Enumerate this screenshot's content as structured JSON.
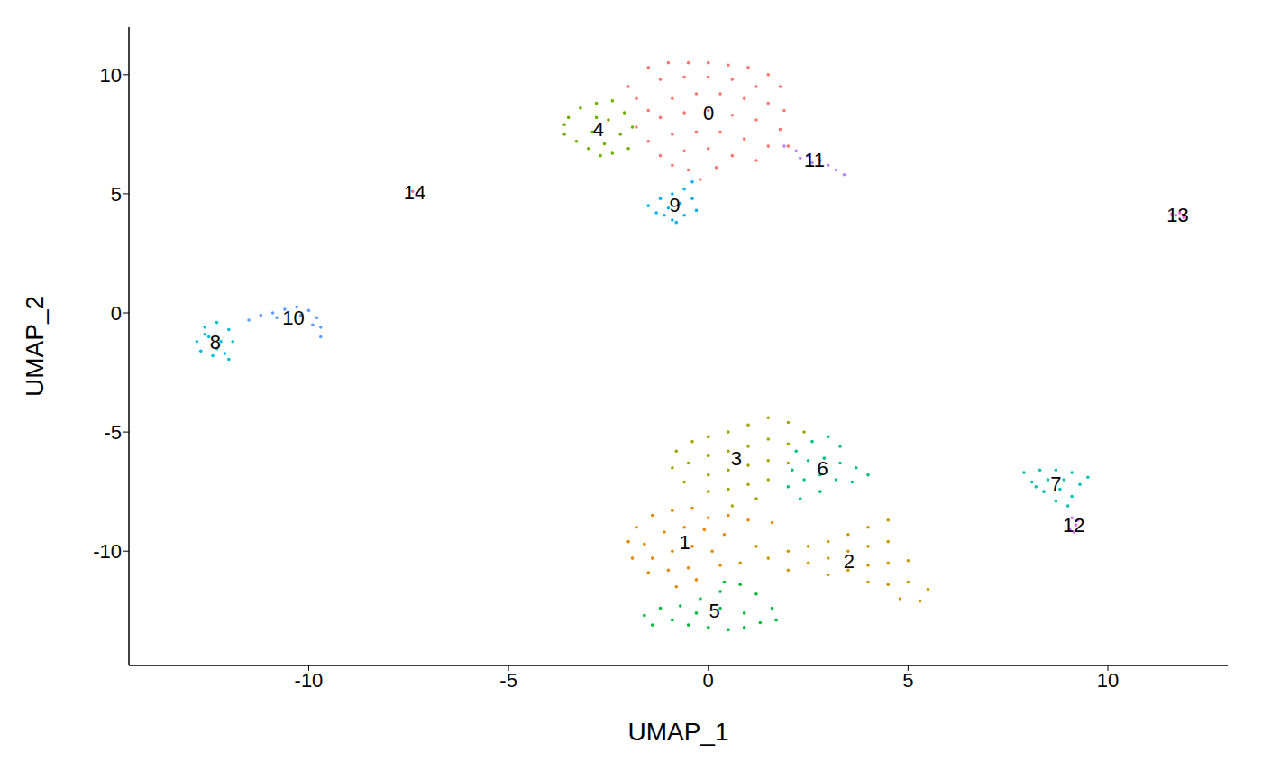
{
  "chart_data": {
    "type": "scatter",
    "x_label": "UMAP_1",
    "y_label": "UMAP_2",
    "xlim": [
      -14.5,
      13
    ],
    "ylim": [
      -14.8,
      12
    ],
    "xticks": [
      -10,
      -5,
      0,
      5,
      10
    ],
    "yticks": [
      -10,
      -5,
      0,
      5,
      10
    ],
    "grid": false,
    "marker": "circle",
    "series": [
      {
        "name": "0",
        "color": "#F8766D",
        "x": [
          -2,
          -1.5,
          -1,
          -0.5,
          0,
          0.5,
          1,
          1.5,
          1.8,
          -1.8,
          -1.2,
          -0.6,
          0,
          0.6,
          1.2,
          -1.5,
          -0.9,
          -0.3,
          0.3,
          0.9,
          1.5,
          1.9,
          -1.8,
          -1.2,
          -0.6,
          0,
          0.6,
          1.2,
          1.8,
          -1.5,
          -0.9,
          -0.3,
          0.3,
          0.9,
          1.5,
          2,
          -1.2,
          -0.6,
          0,
          0.6,
          1.2,
          -0.5,
          0.2,
          -0.9,
          -0.2
        ],
        "values": [
          9.5,
          10.3,
          10.5,
          10.5,
          10.5,
          10.4,
          10.3,
          10,
          9.5,
          9,
          9.8,
          9.9,
          9.9,
          9.8,
          9.5,
          8.5,
          9,
          9.2,
          9.2,
          9,
          8.8,
          8.5,
          7.8,
          8.2,
          8.4,
          8.5,
          8.3,
          8.1,
          7.7,
          7.2,
          7.5,
          7.6,
          7.6,
          7.3,
          7,
          7,
          6.6,
          6.8,
          6.9,
          6.6,
          6.4,
          6,
          6.1,
          6.2,
          5.6
        ]
      },
      {
        "name": "1",
        "color": "#E58700",
        "x": [
          -2,
          -1.8,
          -1.4,
          -0.9,
          -0.4,
          0,
          0.5,
          1,
          1.6,
          -1.6,
          -1.1,
          -0.6,
          -0.1,
          0.4,
          -1.9,
          -1.4,
          -0.9,
          -0.4,
          0.1,
          -1.5,
          -1,
          -0.5,
          -0.8,
          -0.3,
          0.3
        ],
        "values": [
          -9.6,
          -9,
          -8.5,
          -8.3,
          -8.2,
          -8.6,
          -8.5,
          -8.7,
          -8.8,
          -9.7,
          -9.2,
          -9,
          -9.1,
          -9.3,
          -10.3,
          -10.3,
          -10,
          -9.8,
          -10,
          -10.9,
          -10.8,
          -10.7,
          -11.5,
          -11.2,
          -10.6
        ]
      },
      {
        "name": "2",
        "color": "#C99800",
        "x": [
          1.5,
          2,
          2.5,
          3,
          3.5,
          4,
          4.5,
          2,
          2.5,
          3,
          3.5,
          4,
          4.5,
          3,
          3.5,
          4,
          4.5,
          5,
          4,
          4.5,
          5,
          5.5,
          4.8,
          5.3,
          1.2,
          0.8
        ],
        "values": [
          -10.3,
          -10,
          -9.8,
          -9.6,
          -9.3,
          -9,
          -8.7,
          -10.8,
          -10.5,
          -10.3,
          -10,
          -9.8,
          -9.6,
          -11,
          -10.8,
          -10.6,
          -10.5,
          -10.4,
          -11.3,
          -11.4,
          -11.3,
          -11.6,
          -12,
          -12.1,
          -9.8,
          -10.5
        ]
      },
      {
        "name": "3",
        "color": "#A3A500",
        "x": [
          -0.9,
          -0.8,
          -0.4,
          0,
          0.5,
          1,
          1.5,
          2,
          2.4,
          -0.5,
          0,
          0.5,
          1,
          1.5,
          2,
          -0.6,
          0,
          0.5,
          1,
          1.5,
          0,
          0.5,
          1,
          1.5,
          0.6,
          1.2,
          2
        ],
        "values": [
          -6.5,
          -5.8,
          -5.4,
          -5.2,
          -5,
          -4.7,
          -4.4,
          -4.6,
          -5,
          -6.3,
          -6,
          -5.8,
          -5.6,
          -5.3,
          -5.5,
          -7.1,
          -6.8,
          -6.6,
          -6.4,
          -6.2,
          -7.5,
          -7.4,
          -7.2,
          -7,
          -8.1,
          -7.8,
          -6.3
        ]
      },
      {
        "name": "4",
        "color": "#6BB100",
        "x": [
          -3.6,
          -3.5,
          -3.2,
          -2.8,
          -2.4,
          -3.3,
          -2.9,
          -2.5,
          -2.1,
          -3,
          -2.6,
          -2.2,
          -1.9,
          -2.4,
          -2,
          -3.6,
          -2.8,
          -2.7
        ],
        "values": [
          7.5,
          8.2,
          8.6,
          8.8,
          8.9,
          7.2,
          7.6,
          8.1,
          8.4,
          6.9,
          7.1,
          7.5,
          7.8,
          6.7,
          6.9,
          7.9,
          8.2,
          6.6
        ]
      },
      {
        "name": "5",
        "color": "#00BA38",
        "x": [
          -1.6,
          -1.2,
          -0.7,
          -0.2,
          0.3,
          0.8,
          1.2,
          1.6,
          1.7,
          -1.4,
          -0.9,
          -0.3,
          0.3,
          0.9,
          1.3,
          0,
          0.5,
          0.9,
          -0.5,
          0.4
        ],
        "values": [
          -12.7,
          -12.4,
          -12.3,
          -12,
          -11.7,
          -11.4,
          -11.8,
          -12.4,
          -12.9,
          -13.1,
          -12.9,
          -12.6,
          -12.4,
          -12.6,
          -13,
          -13.2,
          -13.3,
          -13.2,
          -13.1,
          -11.3
        ]
      },
      {
        "name": "6",
        "color": "#00BF7D",
        "x": [
          2.2,
          2.6,
          3,
          3.3,
          2.1,
          2.5,
          2.9,
          3.3,
          3.7,
          4,
          2,
          2.4,
          2.8,
          3.2,
          3.6,
          2.3,
          2.8
        ],
        "values": [
          -5.8,
          -5.4,
          -5.2,
          -5.6,
          -6.6,
          -6.2,
          -6.1,
          -6.3,
          -6.5,
          -6.8,
          -7.3,
          -7,
          -6.8,
          -7,
          -7.1,
          -7.8,
          -7.5
        ]
      },
      {
        "name": "7",
        "color": "#00C0AF",
        "x": [
          7.9,
          8.3,
          8.7,
          9.1,
          9.5,
          8.1,
          8.5,
          8.9,
          9.3,
          8.4,
          8.8,
          9.1,
          8.7,
          9,
          8.2
        ],
        "values": [
          -6.7,
          -6.6,
          -6.6,
          -6.7,
          -6.9,
          -7.1,
          -7,
          -7,
          -7.2,
          -7.5,
          -7.4,
          -7.7,
          -7.9,
          -8.1,
          -7.3
        ]
      },
      {
        "name": "8",
        "color": "#00BCD8",
        "x": [
          -12.8,
          -12.6,
          -12.3,
          -12,
          -11.9,
          -12.5,
          -12.2,
          -12.7,
          -12.4,
          -12.1,
          -12.3,
          -12,
          -12.6
        ],
        "values": [
          -1.2,
          -0.6,
          -0.4,
          -0.7,
          -1.2,
          -1,
          -1.2,
          -1.6,
          -1.8,
          -1.7,
          -1.5,
          -1.95,
          -0.9
        ]
      },
      {
        "name": "9",
        "color": "#00B0F6",
        "x": [
          -1.5,
          -1.2,
          -0.9,
          -0.6,
          -0.4,
          -1.3,
          -1,
          -0.7,
          -0.4,
          -0.9,
          -0.6,
          -0.3,
          -1.1,
          -0.8
        ],
        "values": [
          4.5,
          4.8,
          5,
          5.2,
          5.5,
          4.2,
          4.4,
          4.6,
          4.8,
          3.9,
          4.1,
          4.3,
          4.1,
          3.8
        ]
      },
      {
        "name": "10",
        "color": "#619CFF",
        "x": [
          -11.5,
          -11.2,
          -10.9,
          -10.6,
          -10.3,
          -10,
          -9.8,
          -9.7,
          -9.7,
          -9.9,
          -10.2,
          -10.8
        ],
        "values": [
          -0.3,
          -0.1,
          0,
          0.15,
          0.25,
          0.1,
          -0.2,
          -0.6,
          -1,
          -0.5,
          -0.1,
          -0.2
        ]
      },
      {
        "name": "11",
        "color": "#B983FF",
        "x": [
          1.9,
          2.2,
          2.5,
          2.8,
          3,
          3.2,
          3.4,
          2.6,
          2.3
        ],
        "values": [
          7,
          6.8,
          6.6,
          6.4,
          6.2,
          6,
          5.8,
          6.3,
          6.5
        ]
      },
      {
        "name": "12",
        "color": "#E76BF3",
        "x": [
          9.1,
          9.2,
          9.05,
          9.25,
          9.15
        ],
        "values": [
          -8.6,
          -8.9,
          -9.1,
          -8.7,
          -9.2
        ]
      },
      {
        "name": "13",
        "color": "#FD61D1",
        "x": [
          11.7,
          11.8,
          11.9,
          11.6
        ],
        "values": [
          4.1,
          4.2,
          4,
          4.15
        ]
      },
      {
        "name": "14",
        "color": "#FF67A4",
        "x": [
          -7.4,
          -7.3
        ],
        "values": [
          5.1,
          5
        ]
      }
    ]
  }
}
